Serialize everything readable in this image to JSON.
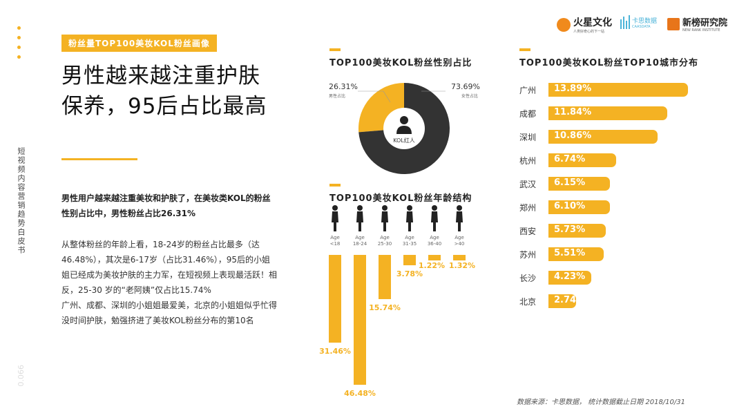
{
  "sidebar": {
    "vertical_title": "短视频内容营销趋势白皮书",
    "page_number": "0.066"
  },
  "logos": [
    {
      "name": "火星文化",
      "sub": "人类好奇心的下一站"
    },
    {
      "name": "卡思数据",
      "sub": "CAASDATA"
    },
    {
      "name": "新榜研究院",
      "sub": "NEW RANK INSTITUTE"
    }
  ],
  "left": {
    "badge": "粉丝量TOP100美妆KOL粉丝画像",
    "headline_line1": "男性越来越注重护肤",
    "headline_line2": "保养，95后占比最高",
    "para_bold": "男性用户越来越注重美妆和护肤了，在美妆类KOL的粉丝性别占比中，男性粉丝占比26.31%",
    "para_body1": "从整体粉丝的年龄上看，18-24岁的粉丝占比最多（达46.48%），其次是6-17岁（占比31.46%），95后的小姐姐已经成为美妆护肤的主力军，在短视频上表现最活跃！相反，25-30 岁的“老阿姨”仅占比15.74%",
    "para_body2": "广州、成都、深圳的小姐姐最爱美，北京的小姐姐似乎忙得没时间护肤，勉强挤进了美妆KOL粉丝分布的第10名"
  },
  "footer": "数据来源：卡思数据， 统计数据截止日期 2018/10/31",
  "colors": {
    "accent": "#f4b223",
    "dark": "#333333"
  },
  "chart_data": [
    {
      "type": "pie",
      "title": "TOP100美妆KOL粉丝性别占比",
      "center_label": "KOL红人",
      "slices": [
        {
          "name": "男性占比",
          "value": 26.31,
          "label": "26.31%",
          "color": "#f4b223"
        },
        {
          "name": "女性占比",
          "value": 73.69,
          "label": "73.69%",
          "color": "#333333"
        }
      ]
    },
    {
      "type": "bar",
      "title": "TOP100美妆KOL粉丝年龄结构",
      "axis_word": "Age",
      "categories": [
        "<18",
        "18-24",
        "25-30",
        "31-35",
        "36-40",
        ">40"
      ],
      "values": [
        31.46,
        46.48,
        15.74,
        3.78,
        1.22,
        1.32
      ],
      "labels": [
        "31.46%",
        "46.48%",
        "15.74%",
        "3.78%",
        "1.22%",
        "1.32%"
      ]
    },
    {
      "type": "bar",
      "orientation": "horizontal",
      "title": "TOP100美妆KOL粉丝TOP10城市分布",
      "categories": [
        "广州",
        "成都",
        "深圳",
        "杭州",
        "武汉",
        "郑州",
        "西安",
        "苏州",
        "长沙",
        "北京"
      ],
      "values": [
        13.89,
        11.84,
        10.86,
        6.74,
        6.15,
        6.1,
        5.73,
        5.51,
        4.23,
        2.74
      ],
      "labels": [
        "13.89%",
        "11.84%",
        "10.86%",
        "6.74%",
        "6.15%",
        "6.10%",
        "5.73%",
        "5.51%",
        "4.23%",
        "2.74%"
      ]
    }
  ]
}
